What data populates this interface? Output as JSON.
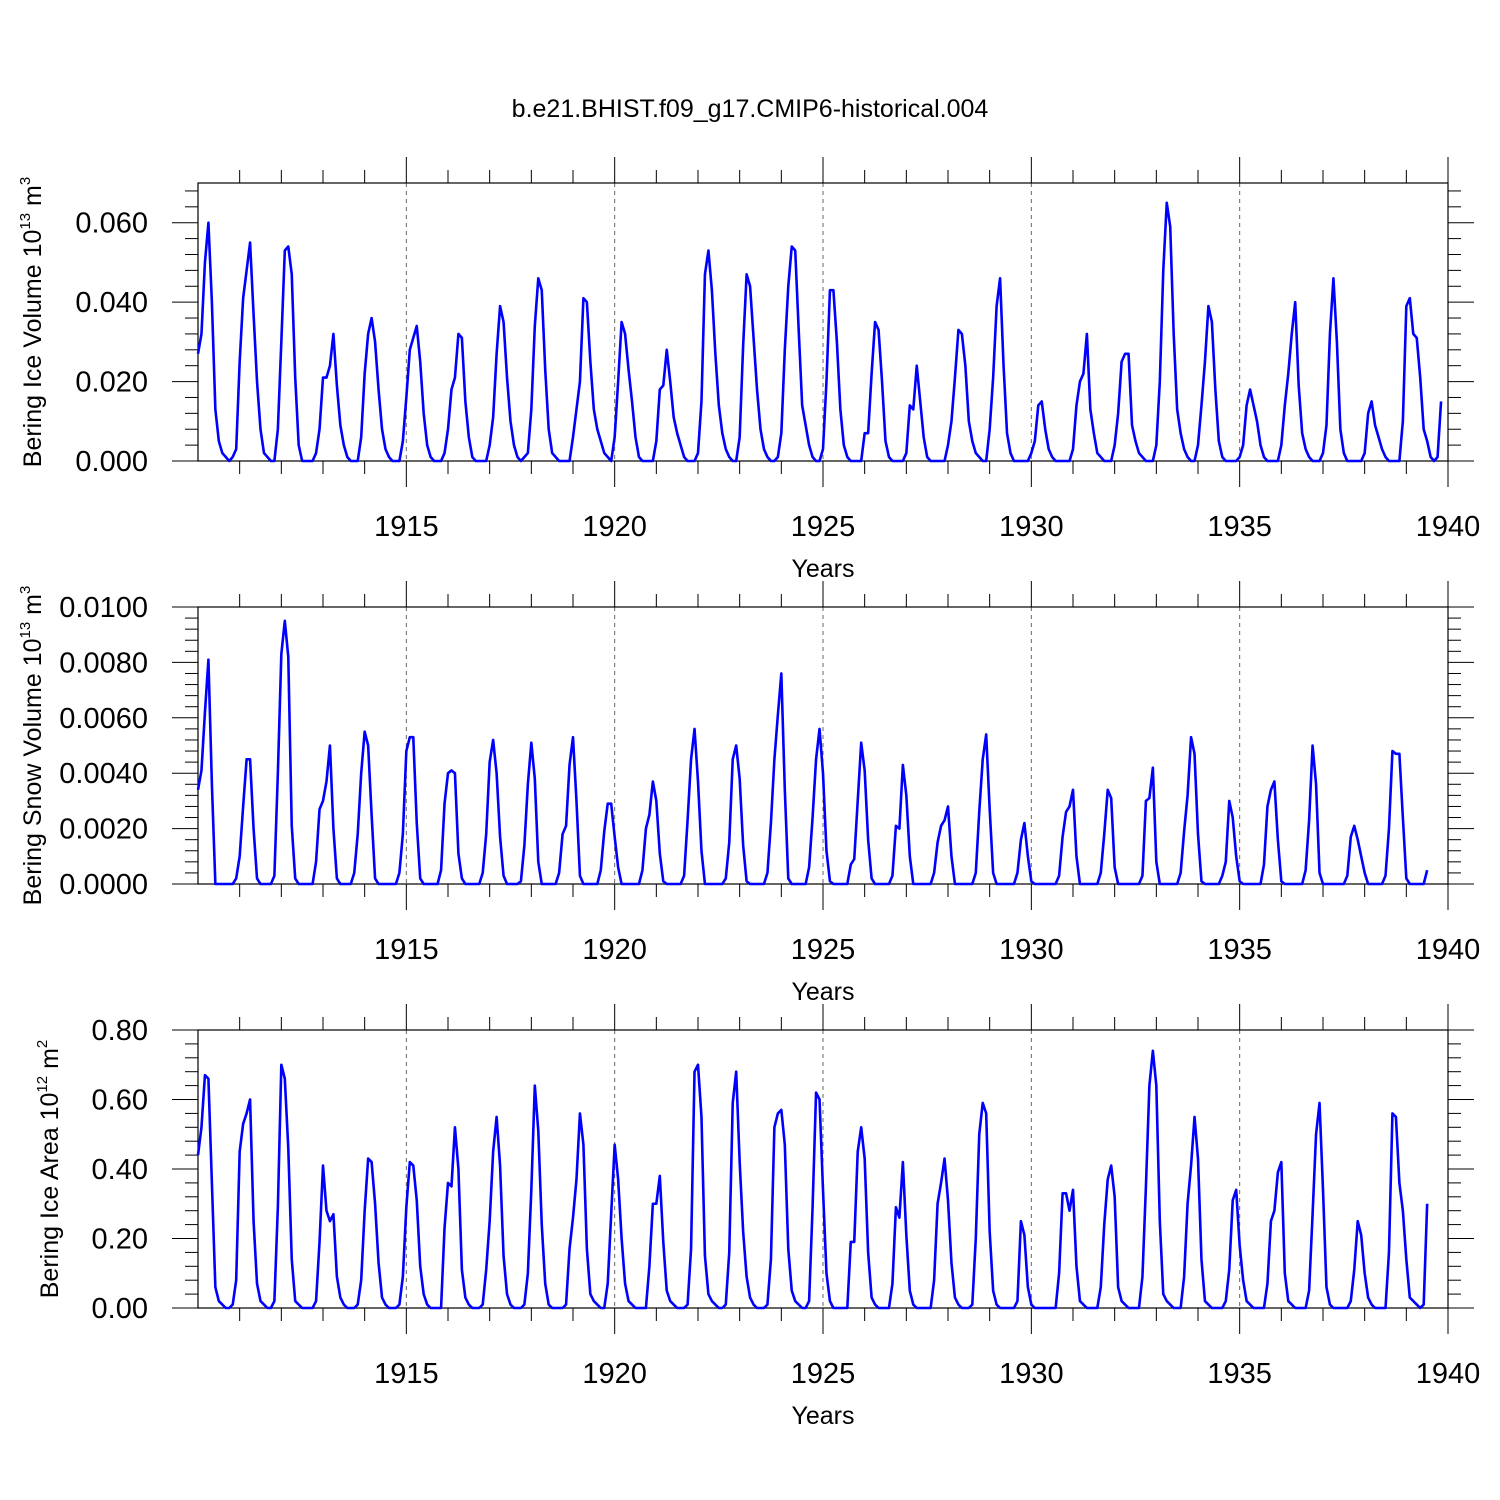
{
  "chart_data": [
    {
      "type": "line",
      "id": "ice-volume",
      "title": "b.e21.BHIST.f09_g17.CMIP6-historical.004",
      "ylabel": "Bering Ice Volume 10",
      "ylabel_exp": "13",
      "ylabel_unit": " m",
      "ylabel_unit_exp": "3",
      "xlabel": "Years",
      "xlim": [
        1910,
        1940
      ],
      "ylim": [
        0,
        0.07
      ],
      "yticks": [
        0,
        0.02,
        0.04,
        0.06
      ],
      "ytick_labels": [
        "0.000",
        "0.020",
        "0.040",
        "0.060"
      ],
      "xticks": [
        1915,
        1920,
        1925,
        1930,
        1935,
        1940
      ],
      "xtick_labels": [
        "1915",
        "1920",
        "1925",
        "1930",
        "1935",
        "1940"
      ],
      "color": "#0000ff",
      "start": 1910,
      "step": 0.0833333,
      "values": [
        0.027,
        0.032,
        0.05,
        0.06,
        0.04,
        0.013,
        0.005,
        0.002,
        0.001,
        0.0,
        0.001,
        0.003,
        0.025,
        0.041,
        0.048,
        0.055,
        0.037,
        0.02,
        0.008,
        0.002,
        0.001,
        0.0,
        0.0,
        0.008,
        0.03,
        0.053,
        0.054,
        0.047,
        0.021,
        0.004,
        0.0,
        0.0,
        0.0,
        0.0,
        0.002,
        0.008,
        0.021,
        0.021,
        0.024,
        0.032,
        0.019,
        0.009,
        0.004,
        0.001,
        0.0,
        0.0,
        0.0,
        0.006,
        0.022,
        0.032,
        0.036,
        0.03,
        0.018,
        0.008,
        0.003,
        0.001,
        0.0,
        0.0,
        0.0,
        0.005,
        0.016,
        0.028,
        0.031,
        0.034,
        0.025,
        0.012,
        0.004,
        0.001,
        0.0,
        0.0,
        0.0,
        0.002,
        0.008,
        0.018,
        0.021,
        0.032,
        0.031,
        0.015,
        0.006,
        0.001,
        0.0,
        0.0,
        0.0,
        0.0,
        0.004,
        0.011,
        0.027,
        0.039,
        0.035,
        0.021,
        0.01,
        0.004,
        0.001,
        0.0,
        0.001,
        0.002,
        0.013,
        0.034,
        0.046,
        0.043,
        0.023,
        0.008,
        0.002,
        0.001,
        0.0,
        0.0,
        0.0,
        0.0,
        0.006,
        0.013,
        0.02,
        0.041,
        0.04,
        0.025,
        0.013,
        0.008,
        0.005,
        0.002,
        0.001,
        0.0,
        0.006,
        0.02,
        0.035,
        0.032,
        0.023,
        0.015,
        0.006,
        0.001,
        0.0,
        0.0,
        0.0,
        0.0,
        0.005,
        0.018,
        0.019,
        0.028,
        0.02,
        0.011,
        0.007,
        0.004,
        0.001,
        0.0,
        0.0,
        0.0,
        0.002,
        0.015,
        0.047,
        0.053,
        0.043,
        0.027,
        0.014,
        0.007,
        0.003,
        0.001,
        0.0,
        0.0,
        0.006,
        0.029,
        0.047,
        0.044,
        0.031,
        0.018,
        0.008,
        0.003,
        0.001,
        0.0,
        0.0,
        0.001,
        0.007,
        0.028,
        0.044,
        0.054,
        0.053,
        0.033,
        0.014,
        0.009,
        0.004,
        0.001,
        0.0,
        0.0,
        0.003,
        0.02,
        0.043,
        0.043,
        0.03,
        0.013,
        0.004,
        0.001,
        0.0,
        0.0,
        0.0,
        0.0,
        0.007,
        0.007,
        0.022,
        0.035,
        0.033,
        0.02,
        0.005,
        0.001,
        0.0,
        0.0,
        0.0,
        0.0,
        0.002,
        0.014,
        0.013,
        0.024,
        0.015,
        0.006,
        0.001,
        0.0,
        0.0,
        0.0,
        0.0,
        0.0,
        0.004,
        0.01,
        0.021,
        0.033,
        0.032,
        0.024,
        0.01,
        0.005,
        0.002,
        0.001,
        0.0,
        0.0,
        0.008,
        0.021,
        0.039,
        0.046,
        0.024,
        0.007,
        0.002,
        0.0,
        0.0,
        0.0,
        0.0,
        0.0,
        0.002,
        0.005,
        0.014,
        0.015,
        0.008,
        0.003,
        0.001,
        0.0,
        0.0,
        0.0,
        0.0,
        0.0,
        0.003,
        0.014,
        0.02,
        0.022,
        0.032,
        0.013,
        0.007,
        0.002,
        0.001,
        0.0,
        0.0,
        0.0,
        0.004,
        0.012,
        0.025,
        0.027,
        0.027,
        0.009,
        0.005,
        0.002,
        0.001,
        0.0,
        0.0,
        0.0,
        0.004,
        0.02,
        0.048,
        0.065,
        0.059,
        0.032,
        0.013,
        0.007,
        0.003,
        0.001,
        0.0,
        0.0,
        0.004,
        0.014,
        0.025,
        0.039,
        0.035,
        0.018,
        0.005,
        0.001,
        0.0,
        0.0,
        0.0,
        0.0,
        0.001,
        0.004,
        0.014,
        0.018,
        0.014,
        0.01,
        0.004,
        0.001,
        0.0,
        0.0,
        0.0,
        0.0,
        0.004,
        0.014,
        0.022,
        0.032,
        0.04,
        0.019,
        0.007,
        0.003,
        0.001,
        0.0,
        0.0,
        0.0,
        0.002,
        0.009,
        0.032,
        0.046,
        0.03,
        0.008,
        0.002,
        0.0,
        0.0,
        0.0,
        0.0,
        0.0,
        0.002,
        0.012,
        0.015,
        0.009,
        0.006,
        0.003,
        0.001,
        0.0,
        0.0,
        0.0,
        0.0,
        0.01,
        0.039,
        0.041,
        0.032,
        0.031,
        0.021,
        0.008,
        0.005,
        0.001,
        0.0,
        0.001,
        0.015
      ]
    },
    {
      "type": "line",
      "id": "snow-volume",
      "ylabel": "Bering Snow Volume 10",
      "ylabel_exp": "13",
      "ylabel_unit": " m",
      "ylabel_unit_exp": "3",
      "xlabel": "Years",
      "xlim": [
        1910,
        1940
      ],
      "ylim": [
        0,
        0.01
      ],
      "yticks": [
        0,
        0.002,
        0.004,
        0.006,
        0.008,
        0.01
      ],
      "ytick_labels": [
        "0.0000",
        "0.0020",
        "0.0040",
        "0.0060",
        "0.0080",
        "0.0100"
      ],
      "xticks": [
        1915,
        1920,
        1925,
        1930,
        1935,
        1940
      ],
      "xtick_labels": [
        "1915",
        "1920",
        "1925",
        "1930",
        "1935",
        "1940"
      ],
      "color": "#0000ff",
      "start": 1910,
      "step": 0.0833333,
      "values": [
        0.0034,
        0.0041,
        0.0062,
        0.0081,
        0.0036,
        0.0,
        0.0,
        0.0,
        0.0,
        0.0,
        0.0,
        0.0002,
        0.001,
        0.0028,
        0.0045,
        0.0045,
        0.002,
        0.0002,
        0.0,
        0.0,
        0.0,
        0.0,
        0.0003,
        0.004,
        0.0083,
        0.0095,
        0.0082,
        0.0021,
        0.0002,
        0.0,
        0.0,
        0.0,
        0.0,
        0.0,
        0.0008,
        0.0027,
        0.003,
        0.0037,
        0.005,
        0.002,
        0.0002,
        0.0,
        0.0,
        0.0,
        0.0,
        0.0004,
        0.0018,
        0.004,
        0.0055,
        0.005,
        0.0025,
        0.0002,
        0.0,
        0.0,
        0.0,
        0.0,
        0.0,
        0.0,
        0.0004,
        0.0018,
        0.0048,
        0.0053,
        0.0053,
        0.0022,
        0.0002,
        0.0,
        0.0,
        0.0,
        0.0,
        0.0,
        0.0005,
        0.0029,
        0.004,
        0.0041,
        0.004,
        0.0011,
        0.0002,
        0.0,
        0.0,
        0.0,
        0.0,
        0.0,
        0.0004,
        0.0018,
        0.0044,
        0.0052,
        0.004,
        0.0017,
        0.0003,
        0.0,
        0.0,
        0.0,
        0.0,
        0.0001,
        0.0014,
        0.0036,
        0.0051,
        0.0038,
        0.0008,
        0.0,
        0.0,
        0.0,
        0.0,
        0.0,
        0.0004,
        0.0018,
        0.0021,
        0.0043,
        0.0053,
        0.003,
        0.0003,
        0.0,
        0.0,
        0.0,
        0.0,
        0.0,
        0.0005,
        0.0019,
        0.0029,
        0.0029,
        0.0017,
        0.0006,
        0.0,
        0.0,
        0.0,
        0.0,
        0.0,
        0.0,
        0.0005,
        0.002,
        0.0025,
        0.0037,
        0.003,
        0.0011,
        0.0001,
        0.0,
        0.0,
        0.0,
        0.0,
        0.0,
        0.0003,
        0.0023,
        0.0045,
        0.0056,
        0.0037,
        0.0012,
        0.0,
        0.0,
        0.0,
        0.0,
        0.0,
        0.0,
        0.0002,
        0.0015,
        0.0045,
        0.005,
        0.0038,
        0.0014,
        0.0001,
        0.0,
        0.0,
        0.0,
        0.0,
        0.0,
        0.0004,
        0.0022,
        0.0045,
        0.0061,
        0.0076,
        0.0034,
        0.0002,
        0.0,
        0.0,
        0.0,
        0.0,
        0.0,
        0.0006,
        0.0024,
        0.0045,
        0.0056,
        0.004,
        0.0012,
        0.0001,
        0.0,
        0.0,
        0.0,
        0.0,
        0.0,
        0.0007,
        0.0009,
        0.003,
        0.0051,
        0.0041,
        0.0016,
        0.0002,
        0.0,
        0.0,
        0.0,
        0.0,
        0.0,
        0.0003,
        0.0021,
        0.002,
        0.0043,
        0.0032,
        0.001,
        0.0,
        0.0,
        0.0,
        0.0,
        0.0,
        0.0,
        0.0004,
        0.0015,
        0.0021,
        0.0023,
        0.0028,
        0.001,
        0.0,
        0.0,
        0.0,
        0.0,
        0.0,
        0.0,
        0.0004,
        0.0026,
        0.0045,
        0.0054,
        0.0027,
        0.0004,
        0.0,
        0.0,
        0.0,
        0.0,
        0.0,
        0.0,
        0.0004,
        0.0016,
        0.0022,
        0.001,
        0.0001,
        0.0,
        0.0,
        0.0,
        0.0,
        0.0,
        0.0,
        0.0,
        0.0003,
        0.0017,
        0.0026,
        0.0028,
        0.0034,
        0.001,
        0.0,
        0.0,
        0.0,
        0.0,
        0.0,
        0.0,
        0.0004,
        0.0018,
        0.0034,
        0.0031,
        0.0006,
        0.0,
        0.0,
        0.0,
        0.0,
        0.0,
        0.0,
        0.0,
        0.0003,
        0.003,
        0.0031,
        0.0042,
        0.0008,
        0.0,
        0.0,
        0.0,
        0.0,
        0.0,
        0.0,
        0.0004,
        0.0019,
        0.0032,
        0.0053,
        0.0047,
        0.0018,
        0.0001,
        0.0,
        0.0,
        0.0,
        0.0,
        0.0,
        0.0003,
        0.0008,
        0.003,
        0.0024,
        0.001,
        0.0001,
        0.0,
        0.0,
        0.0,
        0.0,
        0.0,
        0.0,
        0.0007,
        0.0028,
        0.0034,
        0.0037,
        0.0016,
        0.0001,
        0.0,
        0.0,
        0.0,
        0.0,
        0.0,
        0.0,
        0.0005,
        0.0023,
        0.005,
        0.0036,
        0.0004,
        0.0,
        0.0,
        0.0,
        0.0,
        0.0,
        0.0,
        0.0,
        0.0003,
        0.0017,
        0.0021,
        0.0016,
        0.001,
        0.0004,
        0.0,
        0.0,
        0.0,
        0.0,
        0.0,
        0.0003,
        0.002,
        0.0048,
        0.0047,
        0.0047,
        0.0024,
        0.0002,
        0.0,
        0.0,
        0.0,
        0.0,
        0.0,
        0.0005
      ]
    },
    {
      "type": "line",
      "id": "ice-area",
      "ylabel": "Bering Ice Area 10",
      "ylabel_exp": "12",
      "ylabel_unit": " m",
      "ylabel_unit_exp": "2",
      "xlabel": "Years",
      "xlim": [
        1910,
        1940
      ],
      "ylim": [
        0,
        0.8
      ],
      "yticks": [
        0,
        0.2,
        0.4,
        0.6,
        0.8
      ],
      "ytick_labels": [
        "0.00",
        "0.20",
        "0.40",
        "0.60",
        "0.80"
      ],
      "xticks": [
        1915,
        1920,
        1925,
        1930,
        1935,
        1940
      ],
      "xtick_labels": [
        "1915",
        "1920",
        "1925",
        "1930",
        "1935",
        "1940"
      ],
      "color": "#0000ff",
      "start": 1910,
      "step": 0.0833333,
      "values": [
        0.44,
        0.52,
        0.67,
        0.66,
        0.36,
        0.06,
        0.02,
        0.01,
        0.0,
        0.0,
        0.01,
        0.08,
        0.45,
        0.53,
        0.56,
        0.6,
        0.25,
        0.07,
        0.02,
        0.01,
        0.0,
        0.0,
        0.02,
        0.29,
        0.7,
        0.66,
        0.46,
        0.14,
        0.02,
        0.01,
        0.0,
        0.0,
        0.0,
        0.0,
        0.02,
        0.19,
        0.41,
        0.28,
        0.25,
        0.27,
        0.09,
        0.03,
        0.01,
        0.0,
        0.0,
        0.0,
        0.01,
        0.08,
        0.28,
        0.43,
        0.42,
        0.3,
        0.13,
        0.03,
        0.01,
        0.0,
        0.0,
        0.0,
        0.01,
        0.09,
        0.29,
        0.42,
        0.41,
        0.31,
        0.12,
        0.04,
        0.01,
        0.0,
        0.0,
        0.0,
        0.0,
        0.23,
        0.36,
        0.35,
        0.52,
        0.4,
        0.11,
        0.03,
        0.01,
        0.0,
        0.0,
        0.0,
        0.01,
        0.11,
        0.25,
        0.45,
        0.55,
        0.41,
        0.15,
        0.04,
        0.01,
        0.0,
        0.0,
        0.0,
        0.01,
        0.1,
        0.34,
        0.64,
        0.51,
        0.24,
        0.07,
        0.01,
        0.0,
        0.0,
        0.0,
        0.0,
        0.01,
        0.17,
        0.26,
        0.37,
        0.56,
        0.47,
        0.17,
        0.04,
        0.02,
        0.01,
        0.0,
        0.0,
        0.07,
        0.27,
        0.47,
        0.37,
        0.2,
        0.07,
        0.02,
        0.01,
        0.0,
        0.0,
        0.0,
        0.0,
        0.12,
        0.3,
        0.3,
        0.38,
        0.19,
        0.05,
        0.02,
        0.01,
        0.0,
        0.0,
        0.0,
        0.01,
        0.17,
        0.68,
        0.7,
        0.55,
        0.15,
        0.04,
        0.02,
        0.01,
        0.0,
        0.0,
        0.01,
        0.16,
        0.59,
        0.68,
        0.42,
        0.22,
        0.09,
        0.03,
        0.01,
        0.0,
        0.0,
        0.0,
        0.01,
        0.14,
        0.52,
        0.56,
        0.57,
        0.47,
        0.17,
        0.05,
        0.02,
        0.01,
        0.0,
        0.0,
        0.02,
        0.29,
        0.62,
        0.6,
        0.34,
        0.1,
        0.02,
        0.0,
        0.0,
        0.0,
        0.0,
        0.0,
        0.19,
        0.19,
        0.45,
        0.52,
        0.43,
        0.16,
        0.03,
        0.01,
        0.0,
        0.0,
        0.0,
        0.0,
        0.07,
        0.29,
        0.26,
        0.42,
        0.21,
        0.05,
        0.01,
        0.0,
        0.0,
        0.0,
        0.0,
        0.0,
        0.08,
        0.3,
        0.36,
        0.43,
        0.31,
        0.13,
        0.03,
        0.01,
        0.0,
        0.0,
        0.0,
        0.01,
        0.2,
        0.5,
        0.59,
        0.56,
        0.22,
        0.05,
        0.01,
        0.0,
        0.0,
        0.0,
        0.0,
        0.0,
        0.02,
        0.25,
        0.21,
        0.06,
        0.01,
        0.0,
        0.0,
        0.0,
        0.0,
        0.0,
        0.0,
        0.0,
        0.1,
        0.33,
        0.33,
        0.28,
        0.34,
        0.12,
        0.02,
        0.01,
        0.0,
        0.0,
        0.0,
        0.0,
        0.06,
        0.24,
        0.37,
        0.41,
        0.32,
        0.06,
        0.02,
        0.01,
        0.0,
        0.0,
        0.0,
        0.0,
        0.09,
        0.35,
        0.64,
        0.74,
        0.64,
        0.25,
        0.04,
        0.02,
        0.01,
        0.0,
        0.0,
        0.0,
        0.09,
        0.3,
        0.41,
        0.55,
        0.43,
        0.14,
        0.02,
        0.01,
        0.0,
        0.0,
        0.0,
        0.0,
        0.02,
        0.11,
        0.31,
        0.34,
        0.18,
        0.08,
        0.02,
        0.01,
        0.0,
        0.0,
        0.0,
        0.0,
        0.07,
        0.25,
        0.28,
        0.39,
        0.42,
        0.1,
        0.02,
        0.01,
        0.0,
        0.0,
        0.0,
        0.0,
        0.05,
        0.27,
        0.5,
        0.59,
        0.34,
        0.06,
        0.01,
        0.0,
        0.0,
        0.0,
        0.0,
        0.0,
        0.02,
        0.11,
        0.25,
        0.21,
        0.1,
        0.03,
        0.01,
        0.0,
        0.0,
        0.0,
        0.0,
        0.16,
        0.56,
        0.55,
        0.36,
        0.28,
        0.14,
        0.03,
        0.02,
        0.01,
        0.0,
        0.01,
        0.3
      ]
    }
  ]
}
